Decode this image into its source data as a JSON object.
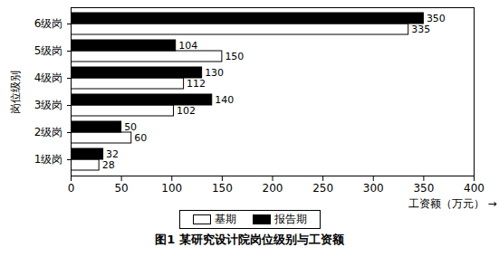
{
  "chart_data": {
    "type": "bar",
    "orientation": "horizontal",
    "title": "图1  某研究设计院岗位级别与工资额",
    "xlabel": "工资额（万元）",
    "ylabel": "岗位级别",
    "categories": [
      "1级岗",
      "2级岗",
      "3级岗",
      "4级岗",
      "5级岗",
      "6级岗"
    ],
    "series": [
      {
        "name": "基期",
        "color": "#ffffff",
        "values": [
          28,
          60,
          102,
          112,
          150,
          335
        ]
      },
      {
        "name": "报告期",
        "color": "#000000",
        "values": [
          32,
          50,
          140,
          130,
          104,
          350
        ]
      }
    ],
    "xlim": [
      0,
      400
    ],
    "xticks": [
      0,
      50,
      100,
      150,
      200,
      250,
      300,
      350,
      400
    ],
    "data_labels": true,
    "legend": "bottom",
    "grid": false
  }
}
